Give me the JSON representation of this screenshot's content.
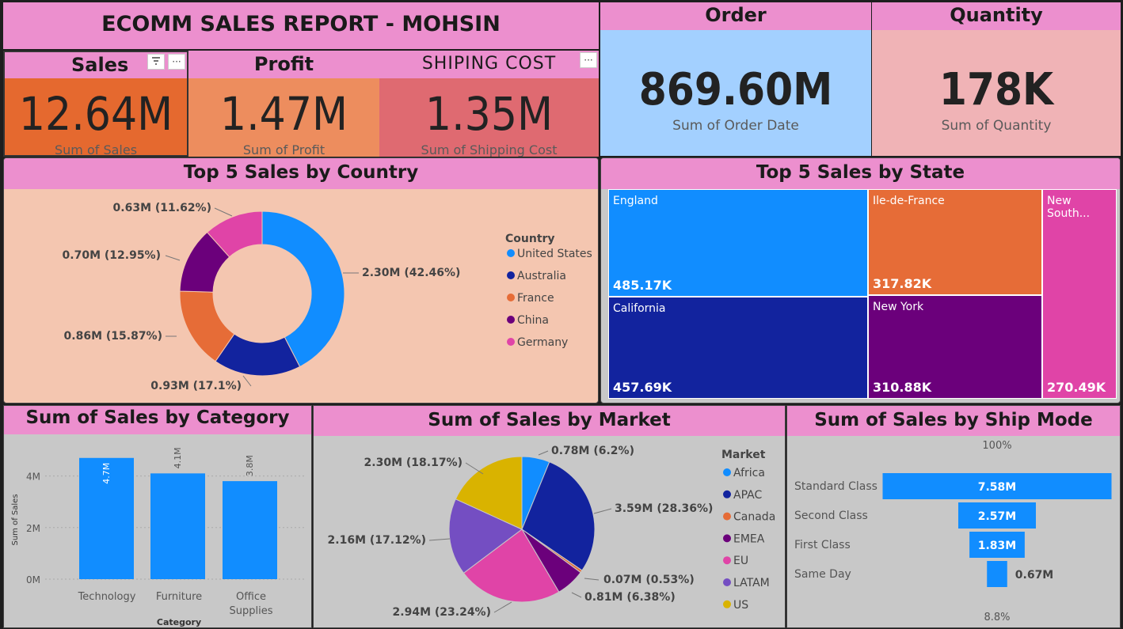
{
  "report_title": "ECOMM SALES REPORT - MOHSIN",
  "kpis": {
    "sales": {
      "title": "Sales",
      "value": "12.64M",
      "sub": "Sum of Sales"
    },
    "profit": {
      "title": "Profit",
      "value": "1.47M",
      "sub": "Sum of Profit"
    },
    "shipping": {
      "title": "SHIPING COST",
      "value": "1.35M",
      "sub": "Sum of Shipping Cost"
    },
    "order": {
      "title": "Order",
      "value": "869.60M",
      "sub": "Sum of Order Date"
    },
    "quantity": {
      "title": "Quantity",
      "value": "178K",
      "sub": "Sum of Quantity"
    }
  },
  "icons": {
    "filter": "filter-icon",
    "more": "more-options-icon"
  },
  "colors": {
    "header": "#ec8fce",
    "us": "#118dff",
    "australia": "#12239e",
    "france": "#e66c37",
    "china": "#6b007b",
    "germany": "#e044a7",
    "purple": "#744ec2",
    "gold": "#d9b300"
  },
  "country_chart": {
    "title": "Top 5 Sales by Country",
    "legend_title": "Country",
    "labels": [
      "2.30M (42.46%)",
      "0.93M (17.1%)",
      "0.86M (15.87%)",
      "0.70M (12.95%)",
      "0.63M (11.62%)"
    ]
  },
  "state_chart": {
    "title": "Top 5 Sales by State",
    "labels": [
      "485.17K",
      "457.69K",
      "317.82K",
      "310.88K",
      "270.49K"
    ]
  },
  "category_chart": {
    "title": "Sum of Sales by Category",
    "ylabel": "Sum of Sales",
    "xlabel": "Category",
    "ticks": [
      "0M",
      "2M",
      "4M"
    ],
    "labels": [
      "4.7M",
      "4.1M",
      "3.8M"
    ]
  },
  "market_chart": {
    "title": "Sum of Sales by Market",
    "legend_title": "Market",
    "labels": [
      "0.78M (6.2%)",
      "3.59M (28.36%)",
      "0.07M (0.53%)",
      "0.81M (6.38%)",
      "2.94M (23.24%)",
      "2.16M (17.12%)",
      "2.30M (18.17%)"
    ]
  },
  "shipmode_chart": {
    "title": "Sum of Sales by Ship Mode",
    "top_label": "100%",
    "bottom_label": "8.8%",
    "labels": [
      "7.58M",
      "2.57M",
      "1.83M",
      "0.67M"
    ]
  },
  "chart_data": [
    {
      "type": "pie",
      "title": "Top 5 Sales by Country",
      "legend_title": "Country",
      "categories": [
        "United States",
        "Australia",
        "France",
        "China",
        "Germany"
      ],
      "values": [
        2.3,
        0.93,
        0.86,
        0.7,
        0.63
      ],
      "percents": [
        42.46,
        17.1,
        15.87,
        12.95,
        11.62
      ],
      "colors": [
        "#118dff",
        "#12239e",
        "#e66c37",
        "#6b007b",
        "#e044a7"
      ],
      "legend": "right"
    },
    {
      "type": "heatmap",
      "title": "Top 5 Sales by State",
      "categories": [
        "England",
        "California",
        "Ile-de-France",
        "New York",
        "New South..."
      ],
      "values": [
        485.17,
        457.69,
        317.82,
        310.88,
        270.49
      ],
      "colors": [
        "#118dff",
        "#12239e",
        "#e66c37",
        "#6b007b",
        "#e044a7"
      ]
    },
    {
      "type": "bar",
      "title": "Sum of Sales by Category",
      "categories": [
        "Technology",
        "Furniture",
        "Office Supplies"
      ],
      "values": [
        4.7,
        4.1,
        3.8
      ],
      "xlabel": "Category",
      "ylabel": "Sum of Sales",
      "ylim": [
        0,
        5
      ],
      "grid": true
    },
    {
      "type": "pie",
      "title": "Sum of Sales by Market",
      "legend_title": "Market",
      "categories": [
        "Africa",
        "APAC",
        "Canada",
        "EMEA",
        "EU",
        "LATAM",
        "US"
      ],
      "values": [
        0.78,
        3.59,
        0.07,
        0.81,
        2.94,
        2.16,
        2.3
      ],
      "percents": [
        6.2,
        28.36,
        0.53,
        6.38,
        23.24,
        17.12,
        18.17
      ],
      "colors": [
        "#118dff",
        "#12239e",
        "#e66c37",
        "#6b007b",
        "#e044a7",
        "#744ec2",
        "#d9b300"
      ],
      "legend": "right"
    },
    {
      "type": "bar",
      "title": "Sum of Sales by Ship Mode",
      "categories": [
        "Standard Class",
        "Second Class",
        "First Class",
        "Same Day"
      ],
      "values": [
        7.58,
        2.57,
        1.83,
        0.67
      ],
      "top_label": "100%",
      "bottom_label": "8.8%"
    }
  ]
}
